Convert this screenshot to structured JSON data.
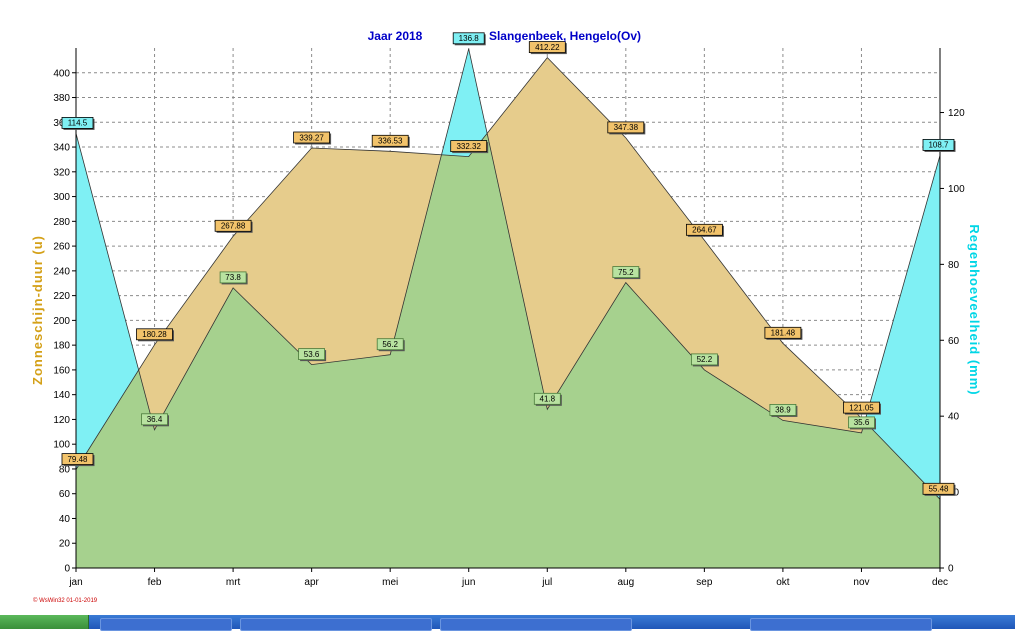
{
  "chart_data": {
    "type": "area",
    "title": "Jaar  2018",
    "subtitle": "Slangenbeek, Hengelo(Ov)",
    "categories": [
      "jan",
      "feb",
      "mrt",
      "apr",
      "mei",
      "jun",
      "jul",
      "aug",
      "sep",
      "okt",
      "nov",
      "dec"
    ],
    "ylabel": "Zonneschijn-duur  (u)",
    "y2label": "Regenhoeveelheid  (mm)",
    "ylim": [
      0,
      420
    ],
    "y2lim": [
      0,
      137
    ],
    "yticks": [
      0,
      20,
      40,
      60,
      80,
      100,
      120,
      140,
      160,
      180,
      200,
      220,
      240,
      260,
      280,
      300,
      320,
      340,
      360,
      380,
      400
    ],
    "y2ticks": [
      0,
      20,
      40,
      60,
      80,
      100,
      120
    ],
    "grid": true,
    "series": [
      {
        "name": "Zonneschijn-duur",
        "axis": "left",
        "color": "#e6cc8c",
        "line": "#333333",
        "values": [
          79.48,
          180.28,
          267.88,
          339.27,
          336.53,
          332.32,
          412.22,
          347.38,
          264.67,
          181.48,
          121.05,
          55.48
        ],
        "labels": [
          "79.48",
          "180.28",
          "267.88",
          "339.27",
          "336.53",
          "332.32",
          "412.22",
          "347.38",
          "264.67",
          "181.48",
          "121.05",
          "55.48"
        ]
      },
      {
        "name": "Regenhoeveelheid",
        "axis": "right",
        "color": "#7ff0f4",
        "line": "#333333",
        "values": [
          114.5,
          36.4,
          73.8,
          53.6,
          56.2,
          136.8,
          41.8,
          75.2,
          52.2,
          38.9,
          35.6,
          108.7
        ],
        "labels": [
          "114.5",
          "36.4",
          "73.8",
          "53.6",
          "56.2",
          "136.8",
          "41.8",
          "75.2",
          "52.2",
          "38.9",
          "35.6",
          "108.7"
        ]
      }
    ],
    "overlap_color": "#a6d18e",
    "footer": "© WsWin32  01-01-2019"
  }
}
